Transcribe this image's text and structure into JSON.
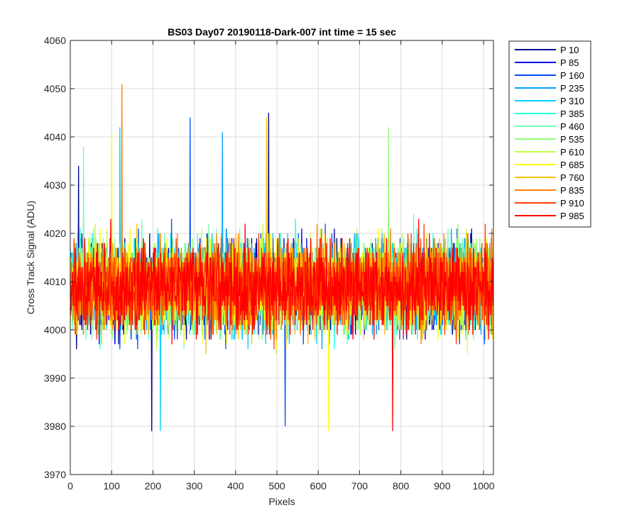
{
  "chart_data": {
    "type": "line",
    "title": "BS03 Day07 20190118-Dark-007 int time = 15 sec",
    "xlabel": "Pixels",
    "ylabel": "Cross Track Signal (ADU)",
    "xlim": [
      0,
      1024
    ],
    "ylim": [
      3970,
      4060
    ],
    "xticks": [
      0,
      100,
      200,
      300,
      400,
      500,
      600,
      700,
      800,
      900,
      1000
    ],
    "yticks": [
      3970,
      3980,
      3990,
      4000,
      4010,
      4020,
      4030,
      4040,
      4050,
      4060
    ],
    "grid": true,
    "legend_position": "outside-top-right",
    "n_points_per_series": 1024,
    "series": [
      {
        "name": "P 10",
        "color": "#00008f",
        "mean": 4009,
        "spread": 7
      },
      {
        "name": "P 85",
        "color": "#0000ef",
        "mean": 4009,
        "spread": 7
      },
      {
        "name": "P 160",
        "color": "#0050ff",
        "mean": 4009,
        "spread": 7
      },
      {
        "name": "P 235",
        "color": "#00a0ff",
        "mean": 4009,
        "spread": 7
      },
      {
        "name": "P 310",
        "color": "#00d0ff",
        "mean": 4009,
        "spread": 7
      },
      {
        "name": "P 385",
        "color": "#20ffdf",
        "mean": 4009,
        "spread": 7
      },
      {
        "name": "P 460",
        "color": "#70ffb0",
        "mean": 4009,
        "spread": 7
      },
      {
        "name": "P 535",
        "color": "#90ff70",
        "mean": 4009,
        "spread": 7
      },
      {
        "name": "P 610",
        "color": "#c0ff40",
        "mean": 4009,
        "spread": 7
      },
      {
        "name": "P 685",
        "color": "#ffff00",
        "mean": 4009,
        "spread": 7
      },
      {
        "name": "P 760",
        "color": "#ffc000",
        "mean": 4009,
        "spread": 7
      },
      {
        "name": "P 835",
        "color": "#ff8000",
        "mean": 4009,
        "spread": 7
      },
      {
        "name": "P 910",
        "color": "#ff4000",
        "mean": 4009,
        "spread": 7
      },
      {
        "name": "P 985",
        "color": "#ff0000",
        "mean": 4009,
        "spread": 7
      }
    ],
    "peaks": [
      {
        "series": "P 10",
        "x": 20,
        "y": 4034
      },
      {
        "series": "P 10",
        "x": 480,
        "y": 4045
      },
      {
        "series": "P 10",
        "x": 197,
        "y": 3979
      },
      {
        "series": "P 160",
        "x": 290,
        "y": 4044
      },
      {
        "series": "P 160",
        "x": 520,
        "y": 3980
      },
      {
        "series": "P 235",
        "x": 368,
        "y": 4041
      },
      {
        "series": "P 310",
        "x": 120,
        "y": 4042
      },
      {
        "series": "P 310",
        "x": 218,
        "y": 3979
      },
      {
        "series": "P 460",
        "x": 32,
        "y": 4038
      },
      {
        "series": "P 535",
        "x": 770,
        "y": 4042
      },
      {
        "series": "P 685",
        "x": 100,
        "y": 4041
      },
      {
        "series": "P 685",
        "x": 625,
        "y": 3979
      },
      {
        "series": "P 760",
        "x": 475,
        "y": 4044
      },
      {
        "series": "P 835",
        "x": 125,
        "y": 4051
      },
      {
        "series": "P 985",
        "x": 780,
        "y": 3979
      }
    ]
  }
}
